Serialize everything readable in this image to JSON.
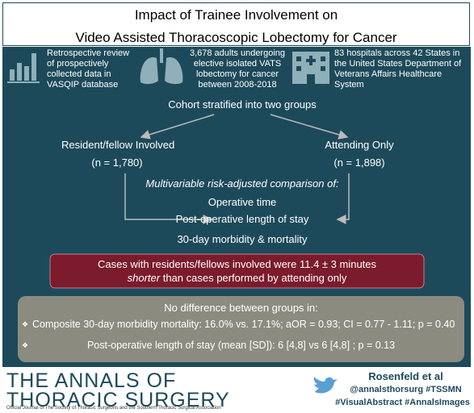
{
  "title": {
    "line1": "Impact of Trainee Involvement on",
    "line2": "Video Assisted Thoracoscopic Lobectomy for Cancer"
  },
  "summary": [
    {
      "text": "Retrospective review of prospectively collected data in VASQIP database"
    },
    {
      "text": "3,678 adults undergoing elective isolated VATS lobectomy for cancer between 2008-2018"
    },
    {
      "text": "83 hospitals across 42 States in the United States Department of Veterans Affairs Healthcare System"
    }
  ],
  "cohort": {
    "heading": "Cohort stratified into two groups",
    "groups": [
      {
        "label": "Resident/fellow Involved",
        "n": "(n = 1,780)"
      },
      {
        "label": "Attending Only",
        "n": "(n = 1,898)"
      }
    ]
  },
  "comparison": {
    "heading": "Multivariable risk-adjusted comparison of:",
    "outcomes": [
      "Operative time",
      "Post-operative length of stay",
      "30-day morbidity & mortality"
    ]
  },
  "finding": {
    "before": "Cases with residents/fellows involved were 11.4 ± 3 minutes ",
    "emphasis": "shorter",
    "after": " than cases performed by attending only"
  },
  "no_difference": {
    "heading": "No difference between groups in:",
    "items": [
      "Composite 30-day morbidity mortality: 16.0% vs. 17.1%; aOR = 0.93; CI = 0.77 - 1.11; p = 0.40",
      "Post-operative length of stay (mean [SD]): 6 [4,8] vs 6 [4,8] ; p = 0.13"
    ]
  },
  "footer": {
    "journal_line1": "THE ANNALS OF",
    "journal_line2": "THORACIC SURGERY",
    "journal_subtitle": "Official Journal of The Society of Thoracic Surgeons and the Southern Thoracic Surgical Association",
    "author": "Rosenfeld et al",
    "handles": "@annalsthorsurg #TSSMN",
    "hashtags": "#VisualAbstract #AnnalsImages"
  }
}
